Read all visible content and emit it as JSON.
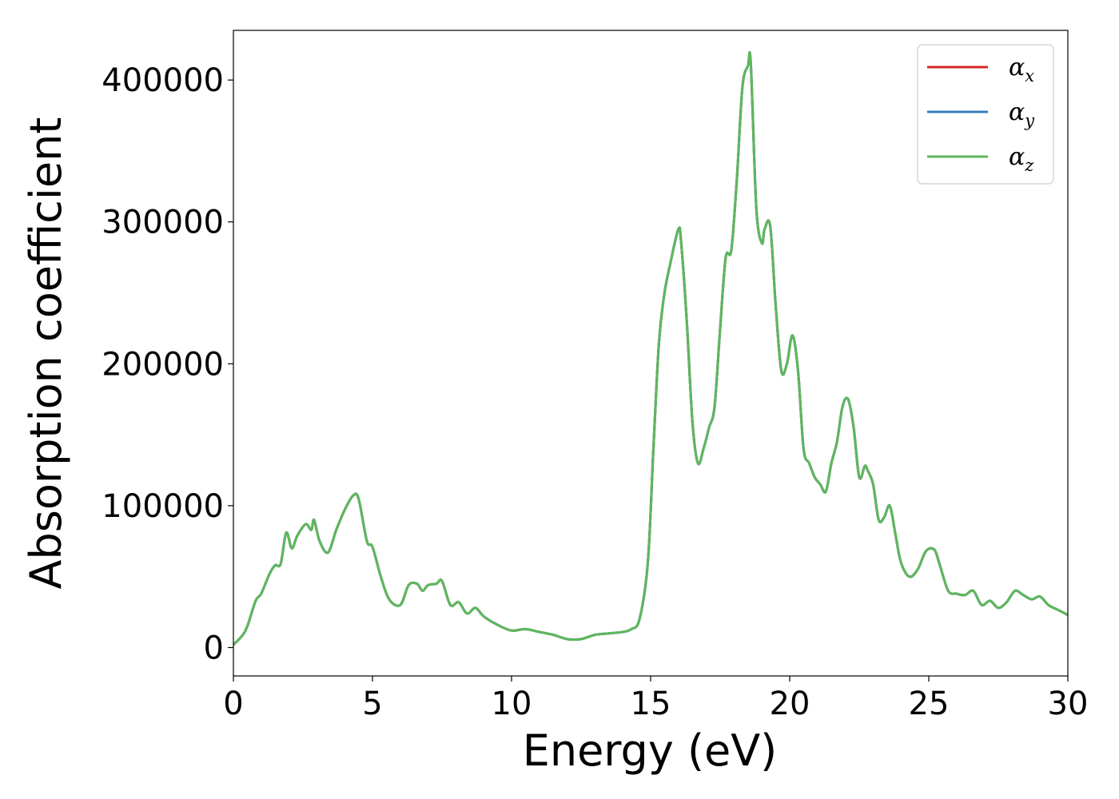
{
  "chart_data": {
    "type": "line",
    "xlabel": "Energy (eV)",
    "ylabel": "Absorption coefficient",
    "xlim": [
      0,
      30
    ],
    "ylim": [
      -20000,
      435000
    ],
    "xticks": [
      0,
      5,
      10,
      15,
      20,
      25,
      30
    ],
    "xtick_labels": [
      "0",
      "5",
      "10",
      "15",
      "20",
      "25",
      "30"
    ],
    "yticks": [
      0,
      100000,
      200000,
      300000,
      400000
    ],
    "ytick_labels": [
      "0",
      "100000",
      "200000",
      "300000",
      "400000"
    ],
    "grid": false,
    "legend_position": "top-right",
    "series": [
      {
        "name": "α_x",
        "legend_base": "α",
        "legend_sub": "x",
        "color": "#d62728"
      },
      {
        "name": "α_y",
        "legend_base": "α",
        "legend_sub": "y",
        "color": "#3a7dc0"
      },
      {
        "name": "α_z",
        "legend_base": "α",
        "legend_sub": "z",
        "color": "#5cb85c"
      }
    ],
    "x": [
      0,
      0.3,
      0.5,
      0.8,
      1.0,
      1.3,
      1.5,
      1.7,
      1.9,
      2.1,
      2.3,
      2.6,
      2.8,
      2.9,
      3.1,
      3.4,
      3.7,
      4.0,
      4.3,
      4.5,
      4.8,
      5.0,
      5.3,
      5.6,
      6.0,
      6.3,
      6.6,
      6.8,
      7.0,
      7.3,
      7.5,
      7.8,
      8.1,
      8.4,
      8.7,
      9.0,
      9.5,
      10.0,
      10.5,
      11.0,
      11.5,
      12.0,
      12.5,
      13.0,
      13.5,
      14.0,
      14.3,
      14.6,
      14.9,
      15.1,
      15.3,
      15.5,
      15.7,
      16.0,
      16.1,
      16.3,
      16.5,
      16.7,
      16.9,
      17.1,
      17.3,
      17.5,
      17.7,
      17.9,
      18.1,
      18.3,
      18.5,
      18.6,
      18.8,
      19.0,
      19.1,
      19.3,
      19.5,
      19.7,
      19.9,
      20.1,
      20.3,
      20.5,
      20.7,
      20.9,
      21.1,
      21.3,
      21.5,
      21.7,
      21.9,
      22.1,
      22.3,
      22.5,
      22.7,
      22.8,
      23.0,
      23.2,
      23.4,
      23.6,
      23.8,
      24.0,
      24.3,
      24.6,
      24.9,
      25.2,
      25.4,
      25.7,
      26.0,
      26.3,
      26.6,
      26.9,
      27.2,
      27.5,
      27.8,
      28.1,
      28.4,
      28.7,
      29.0,
      29.3,
      29.6,
      30.0
    ],
    "y": [
      2000,
      8000,
      15000,
      33000,
      38000,
      52000,
      58000,
      59000,
      81000,
      70000,
      79000,
      87000,
      83000,
      90000,
      75000,
      67000,
      83000,
      97000,
      107000,
      105000,
      75000,
      71000,
      50000,
      34000,
      30000,
      44000,
      45000,
      40000,
      44000,
      45000,
      47000,
      30000,
      32000,
      24000,
      28000,
      22000,
      16000,
      12000,
      13000,
      11000,
      9000,
      6000,
      6000,
      9000,
      10000,
      11000,
      13000,
      20000,
      60000,
      140000,
      215000,
      250000,
      270000,
      295000,
      285000,
      230000,
      160000,
      130000,
      140000,
      155000,
      170000,
      225000,
      275000,
      280000,
      330000,
      395000,
      410000,
      412000,
      310000,
      285000,
      295000,
      297000,
      240000,
      195000,
      200000,
      220000,
      195000,
      140000,
      130000,
      120000,
      115000,
      110000,
      130000,
      145000,
      170000,
      175000,
      155000,
      120000,
      128000,
      125000,
      115000,
      90000,
      92000,
      100000,
      80000,
      60000,
      50000,
      55000,
      68000,
      69000,
      58000,
      40000,
      38000,
      37000,
      40000,
      30000,
      33000,
      28000,
      32000,
      40000,
      37000,
      34000,
      36000,
      30000,
      27000,
      23000
    ]
  }
}
